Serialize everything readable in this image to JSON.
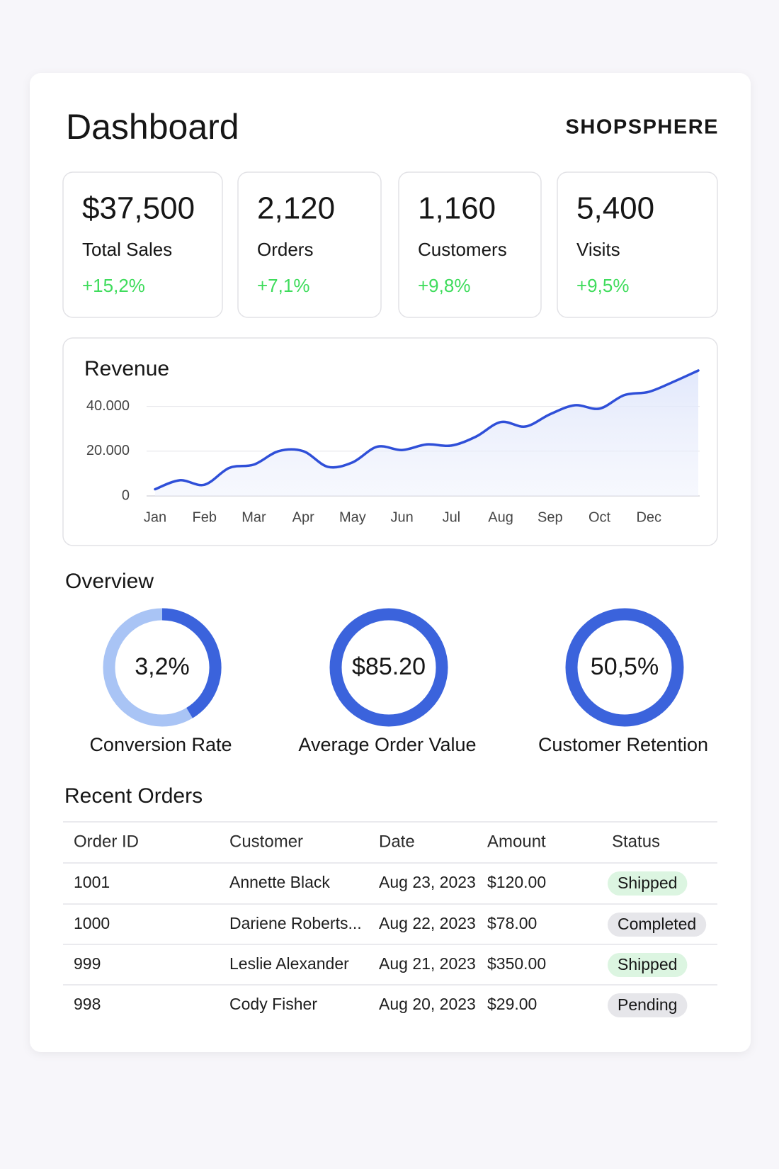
{
  "header": {
    "title": "Dashboard",
    "brand": "SHOPSPHERE"
  },
  "kpis": [
    {
      "value": "$37,500",
      "label": "Total Sales",
      "change": "+15,2%"
    },
    {
      "value": "2,120",
      "label": "Orders",
      "change": "+7,1%"
    },
    {
      "value": "1,160",
      "label": "Customers",
      "change": "+9,8%"
    },
    {
      "value": "5,400",
      "label": "Visits",
      "change": "+9,5%"
    }
  ],
  "revenue": {
    "type": "line",
    "title": "Revenue",
    "categories": [
      "Jan",
      null,
      "Feb",
      null,
      "Mar",
      null,
      "Apr",
      null,
      "May",
      null,
      "Jun",
      null,
      "Jul",
      null,
      "Aug",
      null,
      "Sep",
      null,
      "Oct",
      null,
      "Dec",
      null,
      null
    ],
    "values": [
      3000,
      7000,
      5000,
      12500,
      14000,
      20000,
      20000,
      13000,
      15000,
      22000,
      20500,
      23000,
      22500,
      26500,
      33000,
      31000,
      36500,
      40500,
      39000,
      45000,
      46500,
      51000,
      56000
    ],
    "color": "#2f4fd8",
    "ylim": [
      0,
      56000
    ],
    "yticks": [
      {
        "value": 0,
        "label": "0"
      },
      {
        "value": 20000,
        "label": "20.000"
      },
      {
        "value": 40000,
        "label": "40.000"
      }
    ],
    "grid": true
  },
  "overview": {
    "title": "Overview",
    "items": [
      {
        "value": "3,2%",
        "label": "Conversion Rate"
      },
      {
        "value": "$85.20",
        "label": "Average Order Value"
      },
      {
        "value": "50,5%",
        "label": "Customer Retention"
      }
    ]
  },
  "orders": {
    "title": "Recent Orders",
    "columns": [
      "Order ID",
      "Customer",
      "Date",
      "Amount",
      "Status"
    ],
    "rows": [
      {
        "cells": [
          "1001",
          "Annette Black",
          "Aug 23, 2023",
          "$120.00",
          "Shipped"
        ],
        "badge": "#dcf5e1"
      },
      {
        "cells": [
          "1000",
          "Dariene Roberts...",
          "Aug 22, 2023",
          "$78.00",
          "Completed"
        ],
        "badge": "#e6e6ea"
      },
      {
        "cells": [
          "999",
          "Leslie Alexander",
          "Aug 21, 2023",
          "$350.00",
          "Shipped"
        ],
        "badge": "#dcf5e1"
      },
      {
        "cells": [
          "998",
          "Cody Fisher",
          "Aug 20, 2023",
          "$29.00",
          "Pending"
        ],
        "badge": "#e6e6ea"
      }
    ]
  }
}
